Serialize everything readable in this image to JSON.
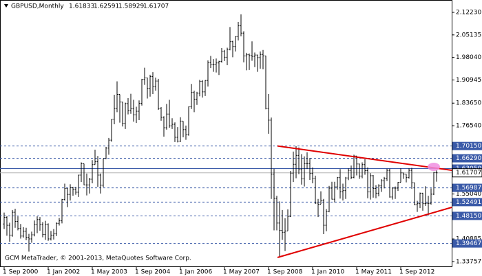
{
  "chart_data": {
    "type": "ohlc",
    "title": "GBPUSD,Monthly",
    "footer": "GCM MetaTrader, © 2001-2013, MetaQuotes Software Corp.",
    "color": "#000000",
    "xlim": [
      -1.5,
      162.5
    ],
    "ylim": [
      1.3225,
      2.1526
    ],
    "xticks": [
      {
        "value": 0,
        "label": "1 Sep 2000"
      },
      {
        "value": 16,
        "label": "1 Jan 2002"
      },
      {
        "value": 32,
        "label": "1 May 2003"
      },
      {
        "value": 48,
        "label": "1 Sep 2004"
      },
      {
        "value": 64,
        "label": "1 Jan 2006"
      },
      {
        "value": 80,
        "label": "1 May 2007"
      },
      {
        "value": 96,
        "label": "1 Sep 2008"
      },
      {
        "value": 112,
        "label": "1 Jan 2010"
      },
      {
        "value": 128,
        "label": "1 May 2011"
      },
      {
        "value": 144,
        "label": "1 Sep 2012"
      }
    ],
    "yticks": [
      {
        "value": 2.1223,
        "label": "2.12230"
      },
      2.05135,
      {
        "value": 1.9804,
        "label": "1.98040"
      },
      1.90945,
      {
        "value": 1.8365,
        "label": "1.83650"
      },
      {
        "value": 1.7654,
        "label": "1.76540"
      },
      {
        "value": 1.5504,
        "label": "1.55040"
      },
      1.40885,
      1.33757
    ],
    "level_color": "#3a5aa8",
    "levels": [
      {
        "value": 1.7015,
        "label": "1.70150",
        "dashed": true
      },
      {
        "value": 1.6629,
        "label": "1.66290",
        "dashed": true
      },
      {
        "value": 1.6305,
        "label": "1.63050",
        "dashed": false
      },
      {
        "value": 1.56987,
        "label": "1.56987",
        "dashed": true
      },
      {
        "value": 1.52491,
        "label": "1.52491",
        "dashed": true
      },
      {
        "value": 1.4815,
        "label": "1.48150",
        "dashed": true
      },
      {
        "value": 1.39467,
        "label": "1.39467",
        "dashed": true
      }
    ],
    "trendlines": [
      {
        "color": "#e00000",
        "from": [
          99.25,
          1.7015
        ],
        "to": [
          162.5,
          1.6251
        ]
      },
      {
        "color": "#e00000",
        "from": [
          99.25,
          1.3506
        ],
        "to": [
          162.5,
          1.5084
        ]
      }
    ],
    "open": [
      1.456,
      1.477,
      1.452,
      1.421,
      1.493,
      1.464,
      1.442,
      1.418,
      1.433,
      1.414,
      1.409,
      1.422,
      1.454,
      1.47,
      1.454,
      1.423,
      1.455,
      1.409,
      1.421,
      1.425,
      1.458,
      1.466,
      1.533,
      1.568,
      1.549,
      1.57,
      1.565,
      1.556,
      1.61,
      1.646,
      1.579,
      1.579,
      1.597,
      1.643,
      1.652,
      1.61,
      1.578,
      1.662,
      1.695,
      1.72,
      1.786,
      1.82,
      1.864,
      1.84,
      1.773,
      1.835,
      1.813,
      1.819,
      1.8,
      1.811,
      1.836,
      1.911,
      1.916,
      1.883,
      1.92,
      1.889,
      1.906,
      1.82,
      1.792,
      1.759,
      1.802,
      1.765,
      1.77,
      1.729,
      1.717,
      1.78,
      1.753,
      1.737,
      1.825,
      1.87,
      1.849,
      1.868,
      1.905,
      1.872,
      1.908,
      1.964,
      1.958,
      1.959,
      1.963,
      1.968,
      2.0,
      1.981,
      2.006,
      2.03,
      2.015,
      2.046,
      2.08,
      2.057,
      1.985,
      1.989,
      1.986,
      1.984,
      1.988,
      1.98,
      1.99,
      1.985,
      1.82,
      1.783,
      1.613,
      1.537,
      1.459,
      1.436,
      1.43,
      1.434,
      1.48,
      1.616,
      1.644,
      1.672,
      1.627,
      1.598,
      1.646,
      1.646,
      1.615,
      1.599,
      1.522,
      1.518,
      1.53,
      1.452,
      1.495,
      1.569,
      1.534,
      1.573,
      1.602,
      1.557,
      1.561,
      1.601,
      1.625,
      1.603,
      1.67,
      1.645,
      1.607,
      1.643,
      1.624,
      1.557,
      1.608,
      1.568,
      1.553,
      1.576,
      1.592,
      1.599,
      1.625,
      1.541,
      1.569,
      1.569,
      1.587,
      1.617,
      1.613,
      1.602,
      1.625,
      1.586,
      1.517,
      1.52,
      1.553,
      1.52,
      1.521,
      1.521,
      1.55,
      1.61833
    ],
    "high": [
      1.492,
      1.481,
      1.46,
      1.5,
      1.504,
      1.48,
      1.456,
      1.446,
      1.444,
      1.425,
      1.432,
      1.467,
      1.48,
      1.478,
      1.462,
      1.466,
      1.458,
      1.434,
      1.44,
      1.461,
      1.475,
      1.535,
      1.583,
      1.568,
      1.581,
      1.573,
      1.573,
      1.611,
      1.65,
      1.646,
      1.615,
      1.601,
      1.657,
      1.69,
      1.67,
      1.615,
      1.662,
      1.699,
      1.727,
      1.786,
      1.863,
      1.905,
      1.864,
      1.841,
      1.838,
      1.852,
      1.866,
      1.847,
      1.825,
      1.845,
      1.913,
      1.948,
      1.917,
      1.926,
      1.934,
      1.917,
      1.913,
      1.824,
      1.795,
      1.834,
      1.847,
      1.789,
      1.776,
      1.761,
      1.792,
      1.78,
      1.766,
      1.826,
      1.897,
      1.876,
      1.872,
      1.91,
      1.909,
      1.909,
      1.971,
      1.985,
      1.975,
      1.977,
      1.97,
      2.01,
      2.004,
      2.011,
      2.076,
      2.033,
      2.047,
      2.092,
      2.116,
      2.063,
      1.995,
      1.993,
      2.031,
      1.996,
      1.989,
      1.999,
      2.004,
      1.986,
      1.865,
      1.791,
      1.63,
      1.545,
      1.527,
      1.5,
      1.474,
      1.502,
      1.623,
      1.684,
      1.701,
      1.697,
      1.676,
      1.669,
      1.682,
      1.664,
      1.634,
      1.608,
      1.535,
      1.559,
      1.535,
      1.503,
      1.576,
      1.589,
      1.589,
      1.604,
      1.629,
      1.583,
      1.604,
      1.631,
      1.64,
      1.674,
      1.67,
      1.646,
      1.65,
      1.66,
      1.634,
      1.616,
      1.61,
      1.578,
      1.581,
      1.597,
      1.604,
      1.63,
      1.63,
      1.572,
      1.574,
      1.588,
      1.631,
      1.617,
      1.613,
      1.631,
      1.633,
      1.586,
      1.529,
      1.555,
      1.554,
      1.575,
      1.545,
      1.568,
      1.62,
      1.62591
    ],
    "low": [
      1.44,
      1.419,
      1.4,
      1.416,
      1.444,
      1.436,
      1.41,
      1.413,
      1.405,
      1.369,
      1.397,
      1.417,
      1.427,
      1.435,
      1.414,
      1.406,
      1.403,
      1.404,
      1.407,
      1.418,
      1.451,
      1.458,
      1.53,
      1.509,
      1.53,
      1.545,
      1.548,
      1.541,
      1.588,
      1.578,
      1.546,
      1.552,
      1.584,
      1.643,
      1.573,
      1.552,
      1.572,
      1.66,
      1.674,
      1.715,
      1.77,
      1.808,
      1.775,
      1.763,
      1.755,
      1.801,
      1.803,
      1.778,
      1.774,
      1.783,
      1.829,
      1.894,
      1.851,
      1.857,
      1.865,
      1.876,
      1.815,
      1.781,
      1.731,
      1.753,
      1.759,
      1.755,
      1.714,
      1.713,
      1.714,
      1.729,
      1.721,
      1.734,
      1.818,
      1.808,
      1.831,
      1.858,
      1.854,
      1.859,
      1.889,
      1.947,
      1.935,
      1.933,
      1.925,
      1.964,
      1.969,
      1.956,
      2.003,
      1.981,
      1.999,
      2.034,
      2.047,
      1.965,
      1.94,
      1.941,
      1.97,
      1.95,
      1.935,
      1.945,
      1.943,
      1.817,
      1.74,
      1.535,
      1.436,
      1.436,
      1.35,
      1.406,
      1.371,
      1.435,
      1.478,
      1.588,
      1.6,
      1.613,
      1.58,
      1.574,
      1.629,
      1.595,
      1.584,
      1.519,
      1.478,
      1.519,
      1.424,
      1.433,
      1.493,
      1.533,
      1.524,
      1.564,
      1.536,
      1.53,
      1.535,
      1.594,
      1.597,
      1.6,
      1.609,
      1.598,
      1.6,
      1.611,
      1.537,
      1.533,
      1.539,
      1.537,
      1.543,
      1.557,
      1.568,
      1.591,
      1.539,
      1.533,
      1.535,
      1.56,
      1.587,
      1.598,
      1.587,
      1.599,
      1.567,
      1.515,
      1.494,
      1.506,
      1.498,
      1.513,
      1.483,
      1.517,
      1.547,
      1.58929
    ],
    "close": [
      1.477,
      1.452,
      1.421,
      1.493,
      1.464,
      1.442,
      1.418,
      1.433,
      1.414,
      1.409,
      1.422,
      1.454,
      1.47,
      1.454,
      1.423,
      1.455,
      1.409,
      1.421,
      1.425,
      1.458,
      1.466,
      1.533,
      1.568,
      1.549,
      1.57,
      1.565,
      1.556,
      1.61,
      1.646,
      1.579,
      1.579,
      1.597,
      1.643,
      1.652,
      1.61,
      1.578,
      1.662,
      1.695,
      1.72,
      1.786,
      1.82,
      1.864,
      1.84,
      1.773,
      1.835,
      1.813,
      1.819,
      1.8,
      1.811,
      1.836,
      1.911,
      1.916,
      1.883,
      1.92,
      1.889,
      1.906,
      1.82,
      1.792,
      1.759,
      1.802,
      1.765,
      1.77,
      1.729,
      1.717,
      1.78,
      1.753,
      1.737,
      1.825,
      1.87,
      1.849,
      1.868,
      1.905,
      1.872,
      1.908,
      1.964,
      1.958,
      1.959,
      1.963,
      1.968,
      2.0,
      1.981,
      2.006,
      2.03,
      2.015,
      2.046,
      2.08,
      2.057,
      1.985,
      1.989,
      1.986,
      1.984,
      1.988,
      1.98,
      1.99,
      1.985,
      1.82,
      1.783,
      1.613,
      1.537,
      1.459,
      1.436,
      1.43,
      1.434,
      1.48,
      1.616,
      1.644,
      1.672,
      1.627,
      1.598,
      1.646,
      1.646,
      1.615,
      1.599,
      1.522,
      1.518,
      1.53,
      1.452,
      1.495,
      1.569,
      1.534,
      1.573,
      1.602,
      1.557,
      1.561,
      1.601,
      1.625,
      1.603,
      1.67,
      1.645,
      1.607,
      1.643,
      1.624,
      1.557,
      1.608,
      1.568,
      1.553,
      1.576,
      1.592,
      1.599,
      1.625,
      1.541,
      1.569,
      1.569,
      1.587,
      1.617,
      1.613,
      1.602,
      1.625,
      1.586,
      1.517,
      1.52,
      1.553,
      1.52,
      1.521,
      1.521,
      1.55,
      1.6183,
      1.61707
    ]
  }
}
